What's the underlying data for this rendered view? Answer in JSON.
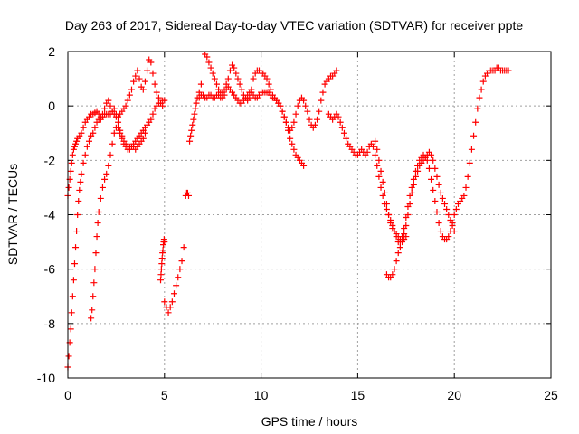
{
  "chart_data": {
    "type": "scatter",
    "title": "Day 263 of 2017, Sidereal Day-to-day VTEC variation (SDTVAR) for receiver ppte",
    "xlabel": "GPS time / hours",
    "ylabel": "SDTVAR / TECUs",
    "xlim": [
      0,
      25
    ],
    "ylim": [
      -10,
      2
    ],
    "xticks": [
      "0",
      "5",
      "10",
      "15",
      "20",
      "25"
    ],
    "yticks": [
      "-10",
      "-8",
      "-6",
      "-4",
      "-2",
      "0",
      "2"
    ],
    "grid": true,
    "marker": "plus",
    "color": "#ff0000",
    "series": [
      {
        "x": [
          0.0,
          0.05,
          0.1,
          0.15,
          0.2,
          0.25,
          0.3,
          0.35,
          0.4,
          0.45,
          0.5,
          0.6,
          0.7,
          0.8,
          0.9,
          1.0,
          1.1,
          1.2,
          1.3,
          1.4,
          1.5,
          1.6,
          1.7,
          1.8,
          1.9,
          2.0,
          2.1,
          2.2,
          2.3,
          2.4,
          2.5,
          2.6,
          2.7,
          2.8,
          2.9,
          3.0,
          3.1,
          3.2,
          3.3,
          3.4,
          3.5,
          3.6,
          3.7,
          3.8,
          3.9,
          4.0,
          4.1,
          4.2,
          4.3,
          4.4,
          4.5,
          4.6,
          4.7,
          4.8,
          4.9
        ],
        "y": [
          -3.3,
          -3.0,
          -2.7,
          -2.4,
          -2.1,
          -1.8,
          -1.6,
          -1.5,
          -1.4,
          -1.3,
          -1.2,
          -1.1,
          -1.0,
          -0.8,
          -0.6,
          -0.5,
          -0.4,
          -0.3,
          -0.3,
          -0.25,
          -0.2,
          -0.3,
          -0.4,
          -0.3,
          -0.1,
          0.1,
          0.2,
          0.0,
          -0.2,
          -0.3,
          -0.4,
          -0.4,
          -0.3,
          -0.2,
          -0.1,
          0.0,
          0.2,
          0.4,
          0.6,
          0.9,
          1.1,
          1.3,
          1.0,
          0.7,
          0.6,
          0.9,
          1.3,
          1.7,
          1.6,
          1.2,
          0.8,
          0.5,
          0.3,
          0.1,
          0.0
        ]
      },
      {
        "x": [
          0.0,
          0.05,
          0.1,
          0.15,
          0.2,
          0.25,
          0.3,
          0.35,
          0.4,
          0.45,
          0.5,
          0.55,
          0.6,
          0.65,
          0.7,
          0.8,
          0.9,
          1.0,
          1.1,
          1.2,
          1.3,
          1.4,
          1.5,
          1.6,
          1.7,
          1.8,
          1.9,
          2.0,
          2.1,
          2.2,
          2.3,
          2.4,
          2.5,
          2.6,
          2.7,
          2.8,
          2.9,
          3.0,
          3.1,
          3.2,
          3.3,
          3.4,
          3.5,
          3.6,
          3.7,
          3.8,
          3.9,
          4.0,
          4.1,
          4.2,
          4.3,
          4.4,
          4.5,
          4.6,
          4.7,
          4.8,
          4.9,
          5.0
        ],
        "y": [
          -9.6,
          -9.2,
          -8.7,
          -8.2,
          -7.6,
          -7.0,
          -6.4,
          -5.8,
          -5.2,
          -4.6,
          -4.0,
          -3.5,
          -3.1,
          -2.8,
          -2.5,
          -2.1,
          -1.8,
          -1.5,
          -1.3,
          -1.1,
          -1.0,
          -0.8,
          -0.6,
          -0.5,
          -0.5,
          -0.4,
          -0.3,
          -0.3,
          -0.3,
          -0.3,
          -0.2,
          -0.1,
          -0.3,
          -0.6,
          -0.9,
          -1.1,
          -1.3,
          -1.4,
          -1.5,
          -1.5,
          -1.5,
          -1.4,
          -1.3,
          -1.2,
          -1.1,
          -1.0,
          -0.9,
          -0.8,
          -0.7,
          -0.6,
          -0.5,
          -0.3,
          -0.1,
          0.0,
          0.1,
          0.1,
          0.2,
          0.2
        ]
      },
      {
        "x": [
          1.2,
          1.25,
          1.3,
          1.35,
          1.4,
          1.45,
          1.5,
          1.55,
          1.6,
          1.7,
          1.8,
          1.9,
          2.0,
          2.1,
          2.2,
          2.3,
          2.4,
          2.5,
          2.6,
          2.7,
          2.8,
          2.9,
          3.0,
          3.1,
          3.2,
          3.3,
          3.4,
          3.5,
          3.6,
          3.7,
          3.8,
          3.9,
          4.0
        ],
        "y": [
          -7.8,
          -7.5,
          -7.0,
          -6.5,
          -6.0,
          -5.4,
          -4.8,
          -4.3,
          -3.9,
          -3.4,
          -3.0,
          -2.7,
          -2.5,
          -2.2,
          -1.8,
          -1.4,
          -1.0,
          -0.8,
          -0.8,
          -1.0,
          -1.2,
          -1.4,
          -1.5,
          -1.6,
          -1.6,
          -1.5,
          -1.5,
          -1.6,
          -1.5,
          -1.4,
          -1.3,
          -1.2,
          -1.0
        ]
      },
      {
        "x": [
          4.8,
          4.82,
          4.84,
          4.86,
          4.88,
          4.9,
          4.92,
          4.94,
          4.96,
          4.98,
          5.0
        ],
        "y": [
          -6.4,
          -6.2,
          -6.0,
          -5.8,
          -5.6,
          -5.4,
          -5.3,
          -5.1,
          -5.0,
          -4.9,
          -5.0
        ]
      },
      {
        "x": [
          5.0,
          5.1,
          5.2,
          5.3,
          5.4,
          5.5,
          5.6,
          5.7,
          5.8,
          5.9,
          6.0
        ],
        "y": [
          -7.2,
          -7.4,
          -7.6,
          -7.4,
          -7.2,
          -6.9,
          -6.6,
          -6.3,
          -6.0,
          -5.7,
          -5.2
        ]
      },
      {
        "x": [
          6.1,
          6.15,
          6.2,
          6.25
        ],
        "y": [
          -3.3,
          -3.2,
          -3.2,
          -3.3
        ]
      },
      {
        "x": [
          6.3,
          6.35,
          6.4,
          6.45,
          6.5,
          6.55,
          6.6,
          6.65,
          6.7,
          6.8,
          6.9
        ],
        "y": [
          -1.3,
          -1.1,
          -0.9,
          -0.7,
          -0.5,
          -0.3,
          -0.1,
          0.1,
          0.3,
          0.5,
          0.8
        ]
      },
      {
        "x": [
          6.8,
          6.9,
          7.0,
          7.1,
          7.2,
          7.3,
          7.4,
          7.5,
          7.6,
          7.7,
          7.8,
          7.9,
          8.0,
          8.1,
          8.2,
          8.3,
          8.4,
          8.5,
          8.6,
          8.7,
          8.8,
          8.9,
          9.0,
          9.1,
          9.2,
          9.3,
          9.4,
          9.5,
          9.6,
          9.7,
          9.8,
          9.9,
          10.0,
          10.1,
          10.2,
          10.3,
          10.4,
          10.5,
          10.6,
          10.7,
          10.8,
          10.9,
          11.0,
          11.1,
          11.2,
          11.3,
          11.4,
          11.5,
          11.6,
          11.7,
          11.8,
          11.9,
          12.0,
          12.1,
          12.2
        ],
        "y": [
          0.3,
          0.4,
          0.4,
          0.3,
          0.3,
          0.4,
          0.4,
          0.3,
          0.3,
          0.4,
          0.4,
          0.3,
          0.3,
          0.4,
          0.6,
          0.7,
          0.6,
          0.5,
          0.4,
          0.3,
          0.2,
          0.1,
          0.1,
          0.2,
          0.3,
          0.4,
          0.5,
          0.5,
          0.4,
          0.3,
          0.3,
          0.4,
          0.5,
          0.5,
          0.5,
          0.5,
          0.5,
          0.4,
          0.3,
          0.3,
          0.2,
          0.1,
          0.0,
          -0.2,
          -0.4,
          -0.6,
          -0.9,
          -1.2,
          -1.4,
          -1.6,
          -1.8,
          -1.9,
          -2.0,
          -2.1,
          -2.2
        ]
      },
      {
        "x": [
          7.1,
          7.2,
          7.3,
          7.4,
          7.5,
          7.6,
          7.7,
          7.8,
          7.9,
          8.0,
          8.1,
          8.2,
          8.3,
          8.4,
          8.5,
          8.6,
          8.7,
          8.8,
          8.9,
          9.0,
          9.1,
          9.2,
          9.3,
          9.4,
          9.5,
          9.6,
          9.7,
          9.8,
          9.9,
          10.0,
          10.1,
          10.2,
          10.3,
          10.4,
          10.5,
          10.6,
          10.7,
          10.8,
          10.9,
          11.0,
          11.1,
          11.2,
          11.3,
          11.4,
          11.5,
          11.6,
          11.7,
          11.8,
          11.9,
          12.0,
          12.1,
          12.2,
          12.3,
          12.4,
          12.5,
          12.6,
          12.7,
          12.8,
          12.9,
          13.0,
          13.1,
          13.2,
          13.3,
          13.4,
          13.5,
          13.6,
          13.7,
          13.8,
          13.9
        ],
        "y": [
          1.9,
          1.8,
          1.6,
          1.4,
          1.2,
          1.0,
          0.8,
          0.6,
          0.5,
          0.5,
          0.6,
          0.8,
          1.0,
          1.3,
          1.5,
          1.4,
          1.2,
          1.0,
          0.8,
          0.6,
          0.4,
          0.3,
          0.2,
          0.3,
          0.6,
          1.0,
          1.2,
          1.3,
          1.3,
          1.2,
          1.2,
          1.1,
          1.0,
          0.8,
          0.6,
          0.4,
          0.3,
          0.2,
          0.1,
          0.0,
          -0.2,
          -0.4,
          -0.6,
          -0.8,
          -0.9,
          -0.8,
          -0.6,
          -0.3,
          0.0,
          0.2,
          0.3,
          0.2,
          0.0,
          -0.2,
          -0.5,
          -0.7,
          -0.8,
          -0.7,
          -0.5,
          -0.2,
          0.2,
          0.5,
          0.8,
          0.9,
          1.0,
          1.1,
          1.1,
          1.2,
          1.3
        ]
      },
      {
        "x": [
          13.5,
          13.6,
          13.7,
          13.8,
          13.9,
          14.0,
          14.1,
          14.2,
          14.3,
          14.4,
          14.5,
          14.6,
          14.7,
          14.8,
          14.9,
          15.0,
          15.1,
          15.2,
          15.3,
          15.4,
          15.5,
          15.6,
          15.7,
          15.8,
          15.9,
          16.0,
          16.1,
          16.2,
          16.3,
          16.4,
          16.5,
          16.6,
          16.7,
          16.8,
          16.9,
          17.0,
          17.1,
          17.2,
          17.3,
          17.4,
          17.5,
          17.6,
          17.7,
          17.8,
          17.9,
          18.0,
          18.1,
          18.2,
          18.3,
          18.4,
          18.5,
          18.6,
          18.7,
          18.8,
          18.9,
          19.0,
          19.1,
          19.2,
          19.3,
          19.4,
          19.5,
          19.6,
          19.7,
          19.8,
          19.9,
          20.0,
          20.1,
          20.2,
          20.3,
          20.4,
          20.5,
          20.6,
          20.7,
          20.8,
          20.9,
          21.0,
          21.1,
          21.2,
          21.3,
          21.4,
          21.5,
          21.6,
          21.7,
          21.8,
          21.9,
          22.0,
          22.1,
          22.2,
          22.3,
          22.4,
          22.5,
          22.6,
          22.7,
          22.8
        ],
        "y": [
          -0.3,
          -0.4,
          -0.5,
          -0.4,
          -0.3,
          -0.4,
          -0.6,
          -0.8,
          -1.0,
          -1.2,
          -1.4,
          -1.5,
          -1.6,
          -1.7,
          -1.8,
          -1.8,
          -1.7,
          -1.6,
          -1.7,
          -1.8,
          -1.7,
          -1.5,
          -1.4,
          -1.5,
          -1.8,
          -2.2,
          -2.6,
          -3.0,
          -3.3,
          -3.6,
          -3.8,
          -4.0,
          -4.2,
          -4.4,
          -4.6,
          -4.8,
          -5.0,
          -5.0,
          -4.8,
          -4.5,
          -4.1,
          -3.7,
          -3.3,
          -3.0,
          -2.7,
          -2.4,
          -2.2,
          -2.0,
          -1.9,
          -1.8,
          -1.9,
          -2.0,
          -2.3,
          -2.7,
          -3.1,
          -3.5,
          -3.9,
          -4.3,
          -4.6,
          -4.8,
          -4.9,
          -4.9,
          -4.8,
          -4.6,
          -4.3,
          -4.0,
          -3.8,
          -3.6,
          -3.5,
          -3.4,
          -3.3,
          -3.0,
          -2.6,
          -2.1,
          -1.6,
          -1.1,
          -0.6,
          -0.1,
          0.3,
          0.6,
          0.9,
          1.1,
          1.2,
          1.3,
          1.3,
          1.3,
          1.3,
          1.4,
          1.4,
          1.3,
          1.3,
          1.3,
          1.3,
          1.3
        ]
      },
      {
        "x": [
          15.9,
          16.0,
          16.1,
          16.2,
          16.3,
          16.4,
          16.5,
          16.6,
          16.7,
          16.8,
          16.9,
          17.0,
          17.1,
          17.2,
          17.3,
          17.4,
          17.5,
          17.6,
          17.7,
          17.8,
          17.9,
          18.0,
          18.1,
          18.2,
          18.3,
          18.4,
          18.5,
          18.6,
          18.7,
          18.8,
          18.9,
          19.0,
          19.1,
          19.2,
          19.3,
          19.4,
          19.5,
          19.6,
          19.7,
          19.8,
          19.9,
          20.0
        ],
        "y": [
          -1.3,
          -1.6,
          -2.0,
          -2.4,
          -2.8,
          -3.2,
          -3.6,
          -4.0,
          -4.3,
          -4.5,
          -4.6,
          -4.7,
          -4.8,
          -4.9,
          -4.9,
          -4.7,
          -4.4,
          -4.0,
          -3.6,
          -3.2,
          -2.9,
          -2.6,
          -2.4,
          -2.2,
          -2.1,
          -2.0,
          -1.9,
          -1.8,
          -1.7,
          -1.8,
          -2.0,
          -2.3,
          -2.6,
          -2.9,
          -3.2,
          -3.4,
          -3.6,
          -3.8,
          -4.0,
          -4.2,
          -4.4,
          -4.6
        ]
      },
      {
        "x": [
          16.5,
          16.6,
          16.7,
          16.8,
          16.9,
          17.0,
          17.1,
          17.2,
          17.3,
          17.4,
          17.5
        ],
        "y": [
          -6.2,
          -6.3,
          -6.3,
          -6.2,
          -6.0,
          -5.7,
          -5.4,
          -5.2,
          -5.0,
          -4.9,
          -4.8
        ]
      }
    ]
  }
}
